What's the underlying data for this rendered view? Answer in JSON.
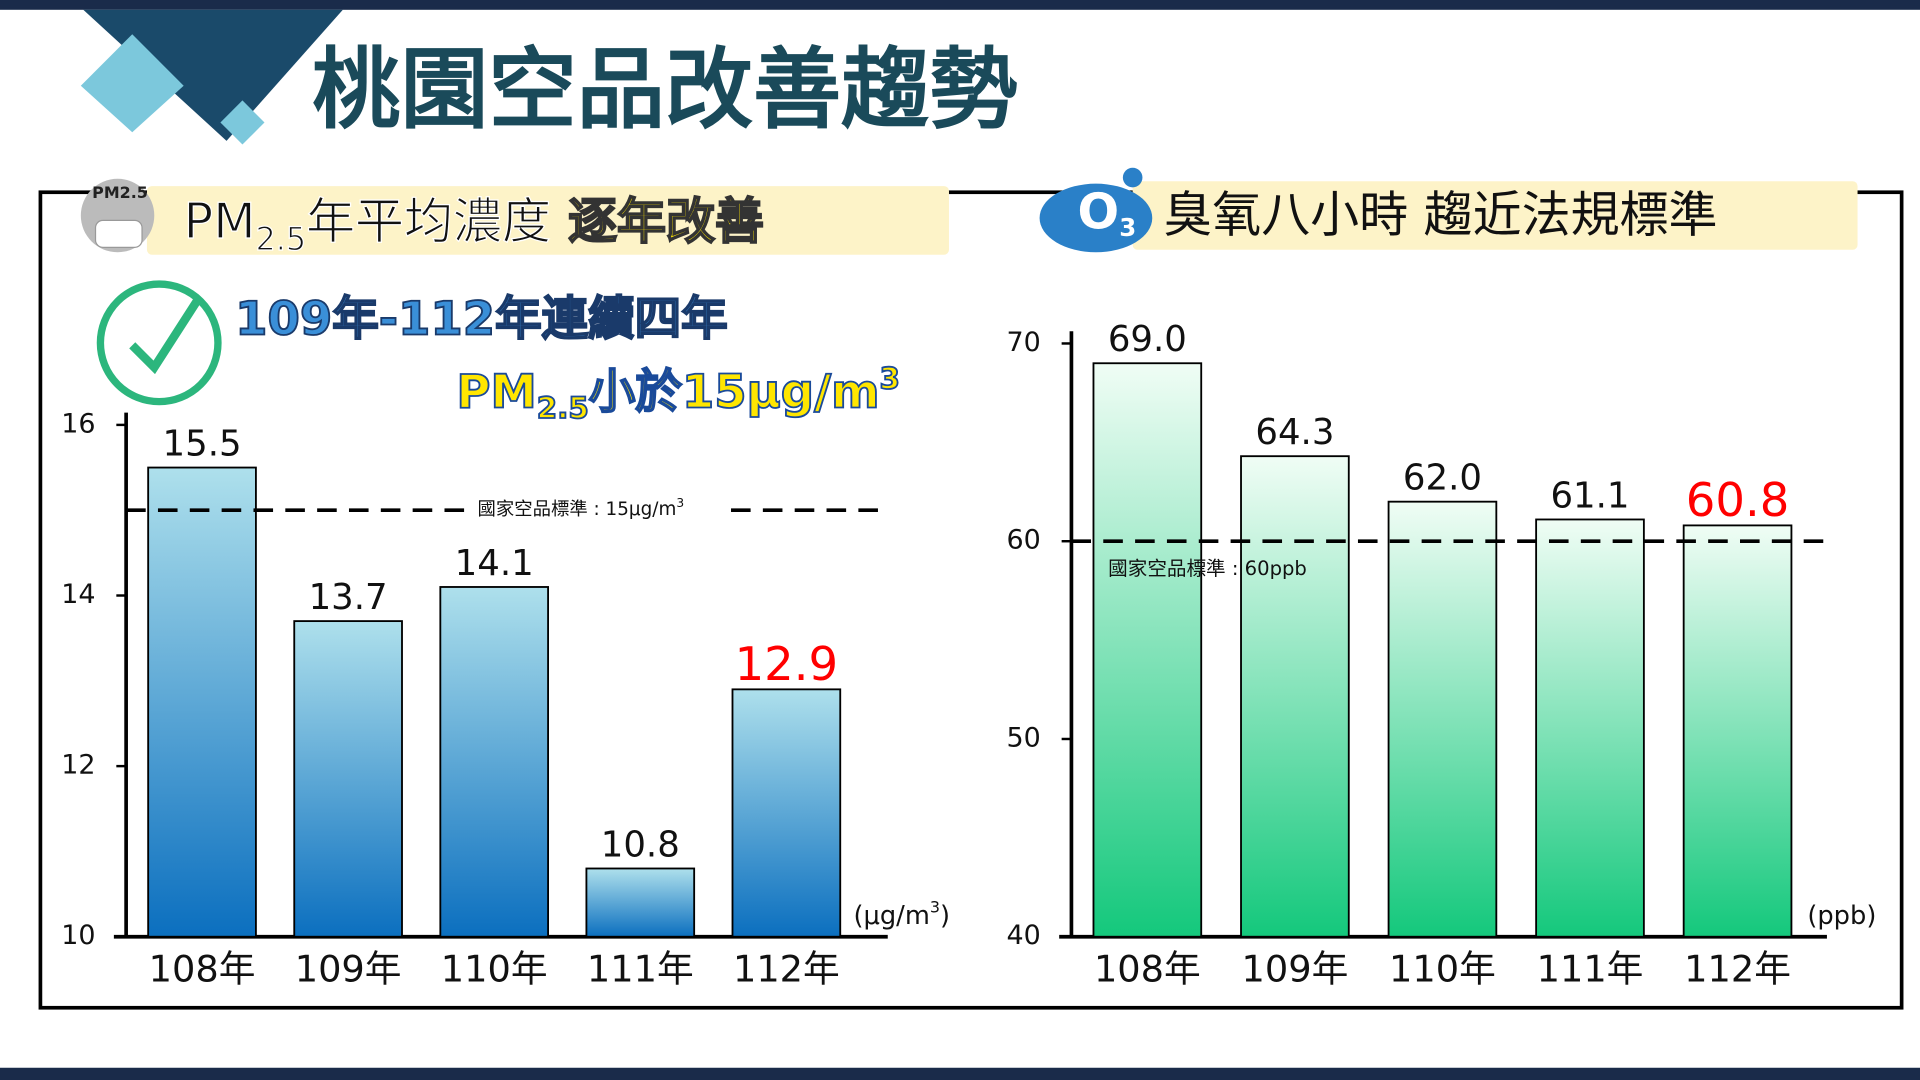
{
  "header": {
    "title": "桃園空品改善趨勢"
  },
  "chart_data": [
    {
      "type": "bar",
      "icon_text": "PM2.5",
      "title_main": "PM",
      "title_sub": "2.5",
      "title_rest": "年平均濃度",
      "title_highlight": "逐年改善",
      "annotation_line1": "109年-112年連續四年",
      "annotation_line2_main": "PM",
      "annotation_line2_sub": "2.5",
      "annotation_line2_rest": "小於15μg/m",
      "annotation_line2_sup": "3",
      "reference_line": 15,
      "reference_label": "國家空品標準 : 15μg/m",
      "reference_label_sup": "3",
      "unit": "(μg/m",
      "unit_sup": "3",
      "unit_end": ")",
      "categories": [
        "108年",
        "109年",
        "110年",
        "111年",
        "112年"
      ],
      "values": [
        15.5,
        13.7,
        14.1,
        10.8,
        12.9
      ],
      "value_label_colors": [
        "#111111",
        "#111111",
        "#111111",
        "#111111",
        "#ff0000"
      ],
      "color": [
        "#aee0ec",
        "#0b6fbf"
      ],
      "ylim": [
        10,
        16
      ],
      "yticks": [
        10,
        12,
        14,
        16
      ]
    },
    {
      "type": "bar",
      "icon_text": "O",
      "icon_sub": "3",
      "title_main": "臭氧八小時 趨近法規標準",
      "reference_line": 60,
      "reference_label": "國家空品標準 : 60ppb",
      "unit": "(ppb)",
      "categories": [
        "108年",
        "109年",
        "110年",
        "111年",
        "112年"
      ],
      "values": [
        69,
        64.3,
        62,
        61.1,
        60.8
      ],
      "value_labels": [
        "69.0",
        "64.3",
        "62.0",
        "61.1",
        "60.8"
      ],
      "value_label_colors": [
        "#111111",
        "#111111",
        "#111111",
        "#111111",
        "#ff0000"
      ],
      "color": [
        "#f0fdf5",
        "#14c87c"
      ],
      "ylim": [
        40,
        70
      ],
      "yticks": [
        40,
        50,
        60,
        70
      ]
    }
  ]
}
